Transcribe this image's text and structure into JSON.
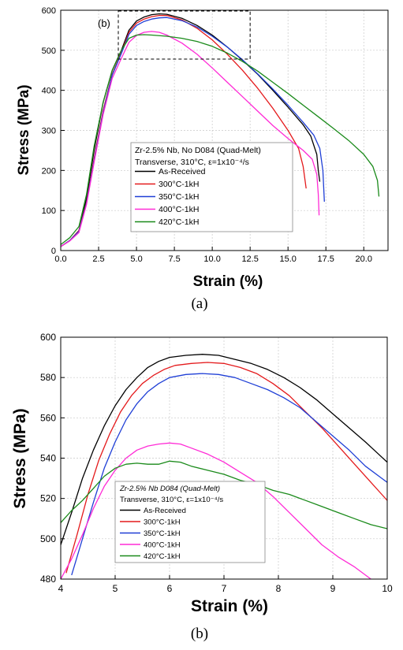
{
  "charts": {
    "a": {
      "caption": "(a)",
      "inset_label": "(b)",
      "legend_title1": "Zr-2.5% Nb, No D084 (Quad-Melt)",
      "legend_title2": "Transverse, 310°C, ε=1x10⁻⁴/s"
    },
    "b": {
      "caption": "(b)",
      "legend_title1": "Zr-2.5% Nb D084 (Quad-Melt)",
      "legend_title2": "Transverse, 310°C, ε=1x10⁻⁴/s"
    }
  },
  "chart_data": [
    {
      "type": "line",
      "xlabel": "Strain (%)",
      "ylabel": "Stress (MPa)",
      "xlim": [
        0,
        21.6
      ],
      "ylim": [
        0,
        600
      ],
      "xticks": [
        "0.0",
        "2.5",
        "5.0",
        "7.5",
        "10.0",
        "12.5",
        "15.0",
        "17.5",
        "20.0"
      ],
      "yticks": [
        "0",
        "100",
        "200",
        "300",
        "400",
        "500",
        "600"
      ],
      "grid": true,
      "legend_position": "center-left",
      "inset_box": {
        "x": [
          3.8,
          12.5
        ],
        "y": [
          478,
          598
        ]
      },
      "series": [
        {
          "name": "As-Received",
          "color": "#000000",
          "points": [
            [
              0,
              10
            ],
            [
              0.6,
              25
            ],
            [
              1.2,
              50
            ],
            [
              1.7,
              130
            ],
            [
              2.2,
              250
            ],
            [
              2.8,
              370
            ],
            [
              3.4,
              450
            ],
            [
              4.0,
              500
            ],
            [
              4.5,
              550
            ],
            [
              5.0,
              573
            ],
            [
              5.5,
              583
            ],
            [
              6.0,
              589
            ],
            [
              6.5,
              591
            ],
            [
              7.0,
              590
            ],
            [
              8.0,
              580
            ],
            [
              9.0,
              562
            ],
            [
              10.0,
              538
            ],
            [
              11.0,
              508
            ],
            [
              12.0,
              475
            ],
            [
              13.0,
              440
            ],
            [
              14.0,
              400
            ],
            [
              15.0,
              358
            ],
            [
              16.0,
              314
            ],
            [
              16.5,
              286
            ],
            [
              16.9,
              240
            ],
            [
              17.0,
              200
            ],
            [
              17.1,
              172
            ]
          ]
        },
        {
          "name": "300°C-1kH",
          "color": "#e41a1c",
          "points": [
            [
              0,
              10
            ],
            [
              0.6,
              25
            ],
            [
              1.2,
              50
            ],
            [
              1.7,
              120
            ],
            [
              2.2,
              230
            ],
            [
              2.8,
              350
            ],
            [
              3.4,
              440
            ],
            [
              4.0,
              495
            ],
            [
              4.5,
              545
            ],
            [
              5.0,
              568
            ],
            [
              5.5,
              578
            ],
            [
              6.0,
              584
            ],
            [
              6.5,
              587
            ],
            [
              7.0,
              587
            ],
            [
              8.0,
              576
            ],
            [
              9.0,
              555
            ],
            [
              10.0,
              526
            ],
            [
              11.0,
              490
            ],
            [
              12.0,
              450
            ],
            [
              13.0,
              405
            ],
            [
              14.0,
              355
            ],
            [
              15.0,
              300
            ],
            [
              15.7,
              255
            ],
            [
              16.0,
              210
            ],
            [
              16.2,
              155
            ]
          ]
        },
        {
          "name": "350°C-1kH",
          "color": "#1f3fd6",
          "points": [
            [
              0,
              10
            ],
            [
              0.6,
              25
            ],
            [
              1.2,
              48
            ],
            [
              1.7,
              118
            ],
            [
              2.2,
              225
            ],
            [
              2.8,
              345
            ],
            [
              3.4,
              438
            ],
            [
              4.0,
              492
            ],
            [
              4.5,
              540
            ],
            [
              5.0,
              562
            ],
            [
              5.5,
              572
            ],
            [
              6.0,
              578
            ],
            [
              6.5,
              581
            ],
            [
              7.0,
              582
            ],
            [
              8.0,
              574
            ],
            [
              9.0,
              558
            ],
            [
              10.0,
              535
            ],
            [
              11.0,
              508
            ],
            [
              12.0,
              476
            ],
            [
              13.0,
              441
            ],
            [
              14.0,
              403
            ],
            [
              15.0,
              363
            ],
            [
              16.0,
              320
            ],
            [
              16.7,
              288
            ],
            [
              17.1,
              255
            ],
            [
              17.3,
              200
            ],
            [
              17.4,
              122
            ]
          ]
        },
        {
          "name": "400°C-1kH",
          "color": "#ff2bd6",
          "points": [
            [
              0,
              10
            ],
            [
              0.6,
              24
            ],
            [
              1.2,
              45
            ],
            [
              1.7,
              115
            ],
            [
              2.2,
              220
            ],
            [
              2.8,
              340
            ],
            [
              3.4,
              430
            ],
            [
              4.0,
              480
            ],
            [
              4.5,
              520
            ],
            [
              5.0,
              537
            ],
            [
              5.5,
              545
            ],
            [
              6.0,
              547
            ],
            [
              6.5,
              545
            ],
            [
              7.0,
              538
            ],
            [
              8.0,
              518
            ],
            [
              9.0,
              490
            ],
            [
              10.0,
              456
            ],
            [
              11.0,
              420
            ],
            [
              12.0,
              384
            ],
            [
              13.0,
              348
            ],
            [
              14.0,
              312
            ],
            [
              15.0,
              280
            ],
            [
              16.0,
              250
            ],
            [
              16.6,
              228
            ],
            [
              16.9,
              190
            ],
            [
              17.0,
              140
            ],
            [
              17.05,
              88
            ]
          ]
        },
        {
          "name": "420°C-1kH",
          "color": "#1a8a1a",
          "points": [
            [
              0,
              15
            ],
            [
              0.6,
              32
            ],
            [
              1.2,
              60
            ],
            [
              1.7,
              140
            ],
            [
              2.2,
              260
            ],
            [
              2.8,
              370
            ],
            [
              3.4,
              450
            ],
            [
              4.0,
              500
            ],
            [
              4.5,
              530
            ],
            [
              5.0,
              538
            ],
            [
              5.5,
              539
            ],
            [
              6.0,
              538
            ],
            [
              7.0,
              535
            ],
            [
              8.0,
              530
            ],
            [
              9.0,
              522
            ],
            [
              10.0,
              510
            ],
            [
              11.0,
              493
            ],
            [
              12.0,
              472
            ],
            [
              13.0,
              448
            ],
            [
              14.0,
              420
            ],
            [
              15.0,
              392
            ],
            [
              16.0,
              363
            ],
            [
              17.0,
              334
            ],
            [
              18.0,
              305
            ],
            [
              19.0,
              275
            ],
            [
              20.0,
              240
            ],
            [
              20.6,
              210
            ],
            [
              20.9,
              175
            ],
            [
              21.0,
              135
            ]
          ]
        }
      ]
    },
    {
      "type": "line",
      "xlabel": "Strain (%)",
      "ylabel": "Stress (MPa)",
      "xlim": [
        4,
        10
      ],
      "ylim": [
        480,
        600
      ],
      "xticks": [
        "4",
        "5",
        "6",
        "7",
        "8",
        "9",
        "10"
      ],
      "yticks": [
        "480",
        "500",
        "520",
        "540",
        "560",
        "580",
        "600"
      ],
      "grid": true,
      "legend_position": "bottom-left",
      "series": [
        {
          "name": "As-Received",
          "color": "#000000",
          "points": [
            [
              4.0,
              497
            ],
            [
              4.2,
              513
            ],
            [
              4.4,
              530
            ],
            [
              4.6,
              544
            ],
            [
              4.8,
              556
            ],
            [
              5.0,
              566
            ],
            [
              5.2,
              574
            ],
            [
              5.4,
              580
            ],
            [
              5.6,
              585
            ],
            [
              5.8,
              588
            ],
            [
              6.0,
              590
            ],
            [
              6.3,
              591
            ],
            [
              6.6,
              591.5
            ],
            [
              6.9,
              591
            ],
            [
              7.2,
              589
            ],
            [
              7.5,
              587
            ],
            [
              7.8,
              584
            ],
            [
              8.1,
              580
            ],
            [
              8.4,
              575
            ],
            [
              8.7,
              569
            ],
            [
              9.0,
              562
            ],
            [
              9.3,
              555
            ],
            [
              9.6,
              548
            ],
            [
              9.8,
              543
            ],
            [
              10.0,
              538
            ]
          ]
        },
        {
          "name": "300°C-1kH",
          "color": "#e41a1c",
          "points": [
            [
              4.1,
              483
            ],
            [
              4.3,
              502
            ],
            [
              4.5,
              522
            ],
            [
              4.7,
              539
            ],
            [
              4.9,
              552
            ],
            [
              5.1,
              563
            ],
            [
              5.3,
              571
            ],
            [
              5.5,
              577
            ],
            [
              5.7,
              581
            ],
            [
              5.9,
              584
            ],
            [
              6.1,
              586
            ],
            [
              6.4,
              587
            ],
            [
              6.7,
              587.5
            ],
            [
              7.0,
              587
            ],
            [
              7.3,
              585
            ],
            [
              7.6,
              582
            ],
            [
              7.9,
              577
            ],
            [
              8.2,
              571
            ],
            [
              8.5,
              563
            ],
            [
              8.8,
              555
            ],
            [
              9.1,
              546
            ],
            [
              9.4,
              537
            ],
            [
              9.7,
              528
            ],
            [
              9.9,
              522
            ],
            [
              10.0,
              519
            ]
          ]
        },
        {
          "name": "350°C-1kH",
          "color": "#1f3fd6",
          "points": [
            [
              4.2,
              482
            ],
            [
              4.4,
              500
            ],
            [
              4.6,
              518
            ],
            [
              4.8,
              535
            ],
            [
              5.0,
              548
            ],
            [
              5.2,
              559
            ],
            [
              5.4,
              567
            ],
            [
              5.6,
              573
            ],
            [
              5.8,
              577
            ],
            [
              6.0,
              580
            ],
            [
              6.3,
              581.5
            ],
            [
              6.6,
              582
            ],
            [
              6.9,
              581.5
            ],
            [
              7.2,
              580
            ],
            [
              7.5,
              577
            ],
            [
              7.8,
              574
            ],
            [
              8.1,
              570
            ],
            [
              8.4,
              565
            ],
            [
              8.7,
              558
            ],
            [
              9.0,
              551
            ],
            [
              9.3,
              544
            ],
            [
              9.6,
              536
            ],
            [
              9.9,
              530
            ],
            [
              10.0,
              528
            ]
          ]
        },
        {
          "name": "400°C-1kH",
          "color": "#ff2bd6",
          "points": [
            [
              4.0,
              480
            ],
            [
              4.2,
              490
            ],
            [
              4.4,
              502
            ],
            [
              4.6,
              515
            ],
            [
              4.8,
              526
            ],
            [
              5.0,
              534
            ],
            [
              5.2,
              540
            ],
            [
              5.4,
              544
            ],
            [
              5.6,
              546
            ],
            [
              5.8,
              547
            ],
            [
              6.0,
              547.5
            ],
            [
              6.2,
              547
            ],
            [
              6.4,
              545
            ],
            [
              6.7,
              542
            ],
            [
              7.0,
              538
            ],
            [
              7.3,
              533
            ],
            [
              7.6,
              528
            ],
            [
              7.9,
              521
            ],
            [
              8.2,
              513
            ],
            [
              8.5,
              505
            ],
            [
              8.8,
              497
            ],
            [
              9.1,
              491
            ],
            [
              9.4,
              486
            ],
            [
              9.6,
              482
            ],
            [
              9.75,
              479
            ]
          ]
        },
        {
          "name": "420°C-1kH",
          "color": "#1a8a1a",
          "points": [
            [
              4.0,
              508
            ],
            [
              4.2,
              514
            ],
            [
              4.4,
              519
            ],
            [
              4.6,
              525
            ],
            [
              4.8,
              531
            ],
            [
              5.0,
              535
            ],
            [
              5.2,
              537
            ],
            [
              5.4,
              537.5
            ],
            [
              5.6,
              537
            ],
            [
              5.8,
              537
            ],
            [
              6.0,
              538.5
            ],
            [
              6.2,
              538
            ],
            [
              6.4,
              536
            ],
            [
              6.7,
              534
            ],
            [
              7.0,
              532
            ],
            [
              7.3,
              529
            ],
            [
              7.6,
              527
            ],
            [
              7.9,
              524
            ],
            [
              8.2,
              522
            ],
            [
              8.5,
              519
            ],
            [
              8.8,
              516
            ],
            [
              9.1,
              513
            ],
            [
              9.4,
              510
            ],
            [
              9.7,
              507
            ],
            [
              10.0,
              505
            ]
          ]
        }
      ]
    }
  ]
}
